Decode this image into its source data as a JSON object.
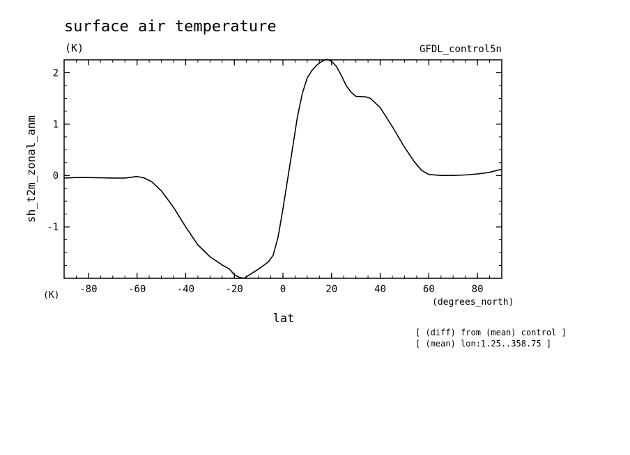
{
  "chart_data": {
    "type": "line",
    "title": "surface air temperature",
    "units_label": "(K)",
    "dataset_label": "GFDL_control5n",
    "xlabel": "lat",
    "xunits": "(degrees_north)",
    "ylabel": "sh_t2m_zonal_anm",
    "yunits": "(K)",
    "xlim": [
      -90,
      90
    ],
    "ylim": [
      -2.0,
      2.25
    ],
    "xticks": [
      -80,
      -60,
      -40,
      -20,
      0,
      20,
      40,
      60,
      80
    ],
    "yticks": [
      -1,
      0,
      1,
      2
    ],
    "xtick_labels": [
      "-80",
      "-60",
      "-40",
      "-20",
      "0",
      "20",
      "40",
      "60",
      "80"
    ],
    "ytick_labels": [
      "-1",
      "0",
      "1",
      "2"
    ],
    "notes": [
      "[ (diff) from (mean) control ]",
      "[ (mean) lon:1.25..358.75 ]"
    ],
    "line_color": "#000000",
    "series": [
      {
        "x": [
          -90,
          -85,
          -80,
          -75,
          -70,
          -65,
          -60,
          -57,
          -54,
          -50,
          -45,
          -40,
          -35,
          -30,
          -25,
          -22,
          -20,
          -18,
          -16,
          -14,
          -10,
          -6,
          -4,
          -2,
          0,
          2,
          4,
          6,
          8,
          10,
          12,
          14,
          16,
          18,
          20,
          22,
          24,
          26,
          28,
          30,
          34,
          36,
          40,
          45,
          50,
          54,
          57,
          60,
          65,
          70,
          75,
          80,
          85,
          88,
          90
        ],
        "y": [
          -0.05,
          -0.04,
          -0.04,
          -0.045,
          -0.05,
          -0.05,
          -0.02,
          -0.05,
          -0.12,
          -0.3,
          -0.62,
          -1.0,
          -1.35,
          -1.58,
          -1.74,
          -1.82,
          -1.93,
          -1.98,
          -2.0,
          -1.94,
          -1.82,
          -1.68,
          -1.55,
          -1.2,
          -0.65,
          -0.05,
          0.55,
          1.15,
          1.6,
          1.9,
          2.05,
          2.15,
          2.22,
          2.26,
          2.22,
          2.12,
          1.95,
          1.75,
          1.62,
          1.54,
          1.53,
          1.5,
          1.32,
          0.95,
          0.55,
          0.27,
          0.1,
          0.02,
          0.0,
          0.0,
          0.01,
          0.03,
          0.06,
          0.1,
          0.12
        ]
      }
    ]
  }
}
